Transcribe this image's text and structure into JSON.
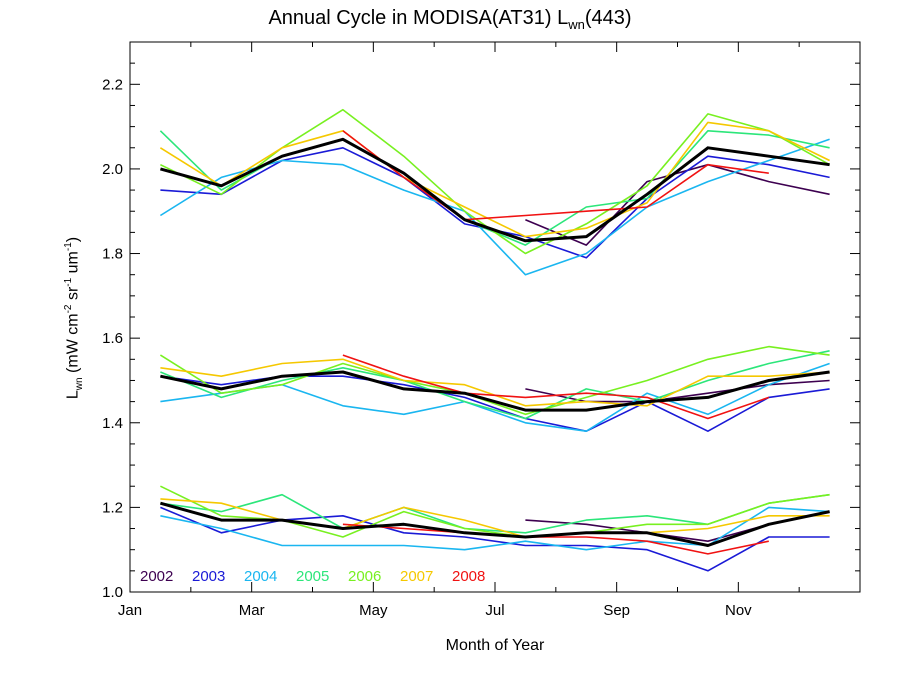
{
  "title": {
    "prefix": "Annual Cycle in MODISA(AT31) L",
    "subscript": "wn",
    "suffix": "(443)"
  },
  "xlabel": "Month of Year",
  "ylabel": {
    "main": "L",
    "main_sub": "wn",
    "p1": " (mW cm",
    "sup1": "-2",
    "p2": " sr",
    "sup2": "-1",
    "p3": " um",
    "sup3": "-1",
    "p4": ")"
  },
  "chart_data": {
    "type": "line",
    "x_tick_labels": [
      "Jan",
      "Mar",
      "May",
      "Jul",
      "Sep",
      "Nov"
    ],
    "y_tick_labels": [
      "1.0",
      "1.2",
      "1.4",
      "1.6",
      "1.8",
      "2.0",
      "2.2"
    ],
    "ylim": [
      1.0,
      2.3
    ],
    "xlim": [
      1,
      13
    ],
    "grid": false,
    "legend_placement": "bottom-left",
    "legend": [
      {
        "name": "2002",
        "color": "#3d0050"
      },
      {
        "name": "2003",
        "color": "#1a1ad6"
      },
      {
        "name": "2004",
        "color": "#1ab6f0"
      },
      {
        "name": "2005",
        "color": "#2ce67a"
      },
      {
        "name": "2006",
        "color": "#78f020"
      },
      {
        "name": "2007",
        "color": "#f5c800"
      },
      {
        "name": "2008",
        "color": "#f01212"
      }
    ],
    "mean_color": "#000000",
    "x": [
      1.5,
      2.5,
      3.5,
      4.5,
      5.5,
      6.5,
      7.5,
      8.5,
      9.5,
      10.5,
      11.5,
      12.5
    ],
    "bands": [
      {
        "band": "upper",
        "series": [
          {
            "name": "2002",
            "values": [
              null,
              null,
              null,
              null,
              null,
              null,
              1.88,
              1.82,
              1.97,
              2.01,
              1.97,
              1.94
            ]
          },
          {
            "name": "2003",
            "values": [
              1.95,
              1.94,
              2.02,
              2.05,
              1.98,
              1.87,
              1.84,
              1.79,
              1.93,
              2.03,
              2.01,
              1.98
            ]
          },
          {
            "name": "2004",
            "values": [
              1.89,
              1.98,
              2.02,
              2.01,
              1.95,
              1.9,
              1.75,
              1.8,
              1.91,
              1.97,
              2.02,
              2.07
            ]
          },
          {
            "name": "2005",
            "values": [
              2.09,
              1.95,
              2.03,
              2.07,
              1.99,
              1.88,
              1.82,
              1.91,
              1.93,
              2.09,
              2.08,
              2.05
            ]
          },
          {
            "name": "2006",
            "values": [
              2.01,
              1.94,
              2.05,
              2.14,
              2.03,
              1.9,
              1.8,
              1.87,
              1.96,
              2.13,
              2.09,
              2.01
            ]
          },
          {
            "name": "2007",
            "values": [
              2.05,
              1.96,
              2.05,
              2.09,
              1.98,
              1.91,
              1.84,
              1.86,
              1.92,
              2.11,
              2.09,
              2.02
            ]
          },
          {
            "name": "2008",
            "values": [
              null,
              null,
              null,
              2.09,
              1.98,
              1.88,
              1.89,
              1.9,
              1.91,
              2.01,
              1.99,
              null
            ]
          },
          {
            "name": "mean",
            "values": [
              2.0,
              1.96,
              2.03,
              2.07,
              1.99,
              1.88,
              1.83,
              1.84,
              1.94,
              2.05,
              2.03,
              2.01
            ]
          }
        ]
      },
      {
        "band": "middle",
        "series": [
          {
            "name": "2002",
            "values": [
              null,
              null,
              null,
              null,
              null,
              null,
              1.48,
              1.45,
              1.45,
              1.47,
              1.49,
              1.5
            ]
          },
          {
            "name": "2003",
            "values": [
              1.51,
              1.49,
              1.51,
              1.51,
              1.49,
              1.46,
              1.41,
              1.38,
              1.45,
              1.38,
              1.46,
              1.48
            ]
          },
          {
            "name": "2004",
            "values": [
              1.45,
              1.47,
              1.49,
              1.44,
              1.42,
              1.45,
              1.4,
              1.38,
              1.47,
              1.42,
              1.49,
              1.54
            ]
          },
          {
            "name": "2005",
            "values": [
              1.52,
              1.46,
              1.5,
              1.53,
              1.5,
              1.45,
              1.41,
              1.48,
              1.45,
              1.5,
              1.54,
              1.57
            ]
          },
          {
            "name": "2006",
            "values": [
              1.56,
              1.47,
              1.49,
              1.54,
              1.5,
              1.47,
              1.42,
              1.46,
              1.5,
              1.55,
              1.58,
              1.56
            ]
          },
          {
            "name": "2007",
            "values": [
              1.53,
              1.51,
              1.54,
              1.55,
              1.5,
              1.49,
              1.44,
              1.45,
              1.44,
              1.51,
              1.51,
              1.52
            ]
          },
          {
            "name": "2008",
            "values": [
              null,
              null,
              null,
              1.56,
              1.51,
              1.47,
              1.46,
              1.47,
              1.46,
              1.41,
              1.46,
              null
            ]
          },
          {
            "name": "mean",
            "values": [
              1.51,
              1.48,
              1.51,
              1.52,
              1.48,
              1.47,
              1.43,
              1.43,
              1.45,
              1.46,
              1.5,
              1.52
            ]
          }
        ]
      },
      {
        "band": "lower",
        "series": [
          {
            "name": "2002",
            "values": [
              null,
              null,
              null,
              null,
              null,
              null,
              1.17,
              1.16,
              1.14,
              1.12,
              1.16,
              1.19
            ]
          },
          {
            "name": "2003",
            "values": [
              1.2,
              1.14,
              1.17,
              1.18,
              1.14,
              1.13,
              1.11,
              1.11,
              1.1,
              1.05,
              1.13,
              1.13
            ]
          },
          {
            "name": "2004",
            "values": [
              1.18,
              1.15,
              1.11,
              1.11,
              1.11,
              1.1,
              1.12,
              1.1,
              1.12,
              1.11,
              1.2,
              1.19
            ]
          },
          {
            "name": "2005",
            "values": [
              1.21,
              1.19,
              1.23,
              1.15,
              1.2,
              1.15,
              1.14,
              1.17,
              1.18,
              1.16,
              1.21,
              1.23
            ]
          },
          {
            "name": "2006",
            "values": [
              1.25,
              1.18,
              1.17,
              1.13,
              1.19,
              1.15,
              1.13,
              1.14,
              1.16,
              1.16,
              1.21,
              1.23
            ]
          },
          {
            "name": "2007",
            "values": [
              1.22,
              1.21,
              1.17,
              1.15,
              1.2,
              1.17,
              1.13,
              1.14,
              1.14,
              1.15,
              1.18,
              1.18
            ]
          },
          {
            "name": "2008",
            "values": [
              null,
              null,
              null,
              1.16,
              1.15,
              1.14,
              1.13,
              1.13,
              1.12,
              1.09,
              1.12,
              null
            ]
          },
          {
            "name": "mean",
            "values": [
              1.21,
              1.17,
              1.17,
              1.15,
              1.16,
              1.14,
              1.13,
              1.14,
              1.14,
              1.11,
              1.16,
              1.19
            ]
          }
        ]
      }
    ]
  }
}
